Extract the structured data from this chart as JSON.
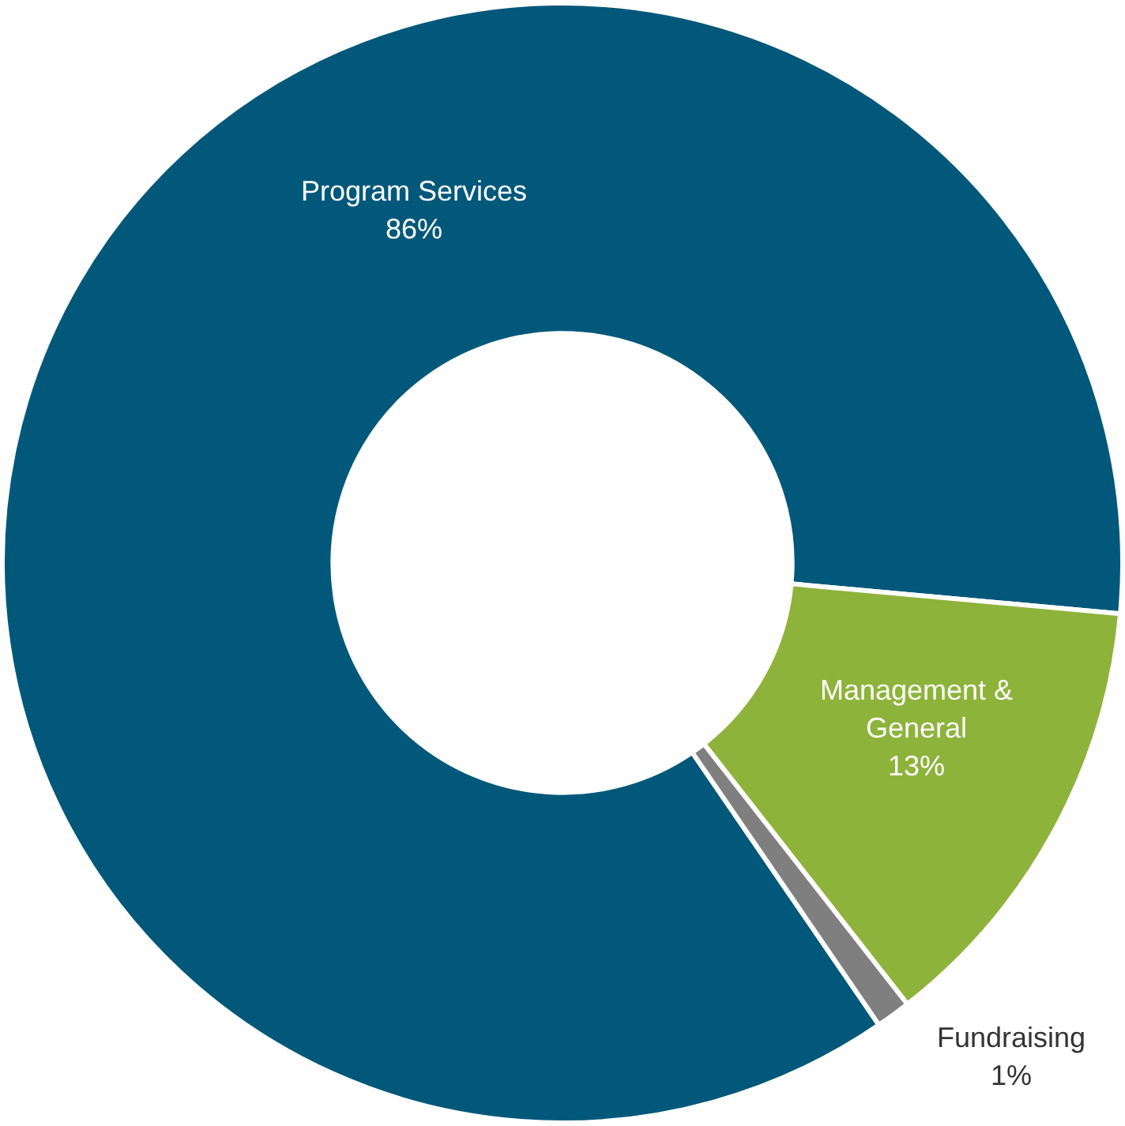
{
  "chart_data": {
    "type": "donut",
    "categories": [
      "Program Services",
      "Management & General",
      "Fundraising"
    ],
    "values": [
      86,
      13,
      1
    ],
    "colors": [
      "#01587a",
      "#8db33a",
      "#7f7f7f"
    ],
    "value_labels": [
      "86%",
      "13%",
      "1%"
    ],
    "legend": false
  }
}
